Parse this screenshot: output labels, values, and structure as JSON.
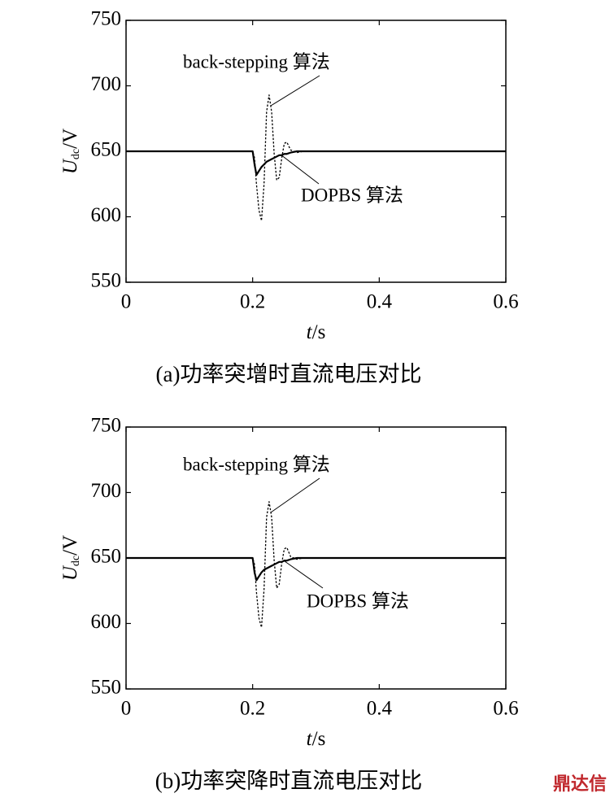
{
  "chart_data": [
    {
      "type": "line",
      "caption": "(a)功率突增时直流电压对比",
      "xlabel": [
        "t",
        "/s"
      ],
      "ylabel": [
        "U",
        "dc",
        "/V"
      ],
      "x": [
        0,
        0.2,
        0.203,
        0.206,
        0.21,
        0.214,
        0.218,
        0.222,
        0.226,
        0.23,
        0.234,
        0.238,
        0.242,
        0.246,
        0.25,
        0.254,
        0.26,
        0.27,
        0.28,
        0.3,
        0.4,
        0.5,
        0.6
      ],
      "series": [
        {
          "name": "back-stepping 算法",
          "color": "#000000",
          "style": "dashed",
          "values": [
            650,
            650,
            645,
            625,
            605,
            597,
            625,
            680,
            693,
            680,
            648,
            628,
            630,
            645,
            656,
            657,
            651,
            649,
            650,
            650,
            650,
            650,
            650
          ]
        },
        {
          "name": "DOPBS 算法",
          "color": "#000000",
          "style": "solid",
          "values": [
            650,
            650,
            640,
            632,
            635,
            638,
            640,
            642,
            643,
            644,
            645,
            646,
            647,
            647,
            648,
            648,
            649,
            650,
            650,
            650,
            650,
            650,
            650
          ]
        }
      ],
      "xlim": [
        0,
        0.6
      ],
      "xticks": [
        0,
        0.2,
        0.4,
        0.6
      ],
      "ylim": [
        550,
        750
      ],
      "yticks": [
        550,
        600,
        650,
        700,
        750
      ]
    },
    {
      "type": "line",
      "caption": "(b)功率突降时直流电压对比",
      "xlabel": [
        "t",
        "/s"
      ],
      "ylabel": [
        "U",
        "dc",
        "/V"
      ],
      "x": [
        0,
        0.2,
        0.203,
        0.206,
        0.21,
        0.214,
        0.218,
        0.222,
        0.226,
        0.23,
        0.234,
        0.238,
        0.242,
        0.246,
        0.25,
        0.254,
        0.26,
        0.27,
        0.28,
        0.3,
        0.4,
        0.5,
        0.6
      ],
      "series": [
        {
          "name": "back-stepping 算法",
          "color": "#000000",
          "style": "dashed",
          "values": [
            650,
            650,
            645,
            624,
            604,
            597,
            626,
            681,
            693,
            681,
            648,
            627,
            630,
            646,
            657,
            658,
            651,
            649,
            650,
            650,
            650,
            650,
            650
          ]
        },
        {
          "name": "DOPBS 算法",
          "color": "#000000",
          "style": "solid",
          "values": [
            650,
            650,
            639,
            633,
            636,
            639,
            641,
            642,
            643,
            644,
            645,
            646,
            647,
            647,
            648,
            648,
            649,
            650,
            650,
            650,
            650,
            650,
            650
          ]
        }
      ],
      "xlim": [
        0,
        0.6
      ],
      "xticks": [
        0,
        0.2,
        0.4,
        0.6
      ],
      "ylim": [
        550,
        750
      ],
      "yticks": [
        550,
        600,
        650,
        700,
        750
      ]
    }
  ],
  "watermark": "鼎达信"
}
